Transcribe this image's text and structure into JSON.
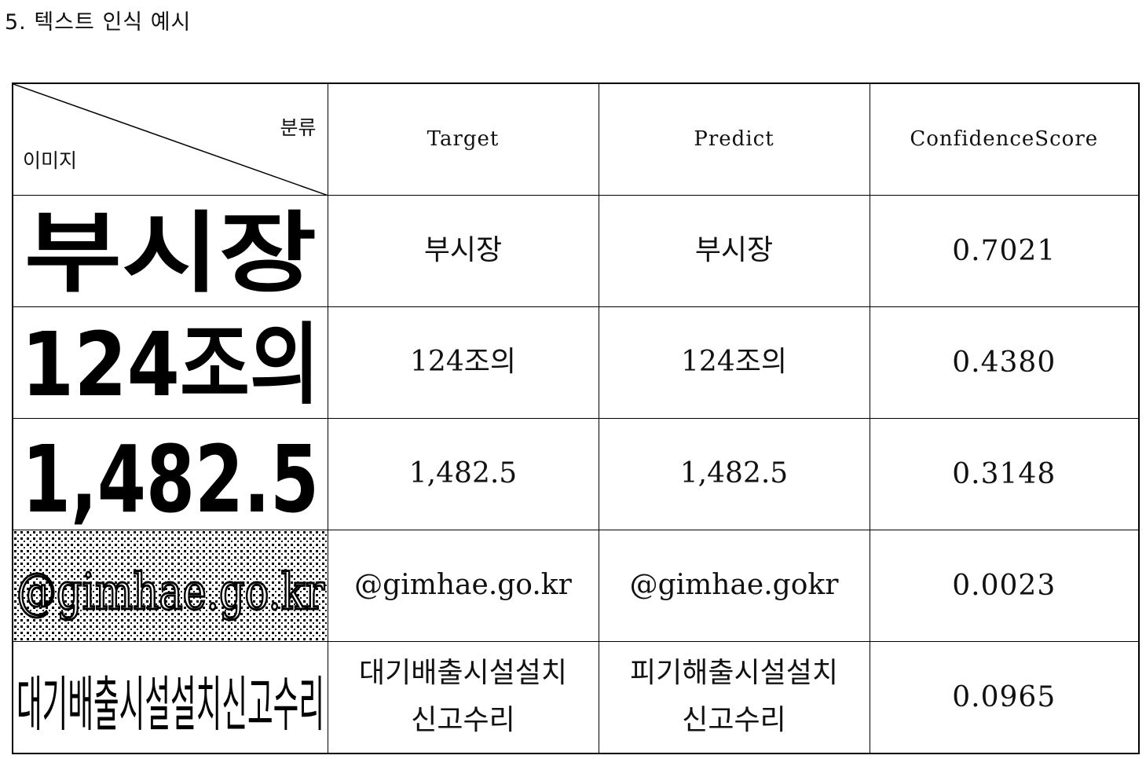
{
  "heading": "5. 텍스트 인식 예시",
  "table": {
    "corner_top_label": "분류",
    "corner_bottom_label": "이미지",
    "columns": [
      "Target",
      "Predict",
      "ConfidenceScore"
    ],
    "rows": [
      {
        "image_text": "부시장",
        "target": "부시장",
        "predict": "부시장",
        "score": "0.7021"
      },
      {
        "image_text": "124조의",
        "target": "124조의",
        "predict": "124조의",
        "score": "0.4380"
      },
      {
        "image_text": "1,482.5",
        "target": "1,482.5",
        "predict": "1,482.5",
        "score": "0.3148"
      },
      {
        "image_text": "@gimhae.go.kr",
        "target": "@gimhae.go.kr",
        "predict": "@gimhae.gokr",
        "score": "0.0023"
      },
      {
        "image_text": "대기배출시설설치신고수리",
        "target": [
          "대기배출시설설치",
          "신고수리"
        ],
        "predict": [
          "피기해출시설설치",
          "신고수리"
        ],
        "score": "0.0965"
      }
    ]
  }
}
